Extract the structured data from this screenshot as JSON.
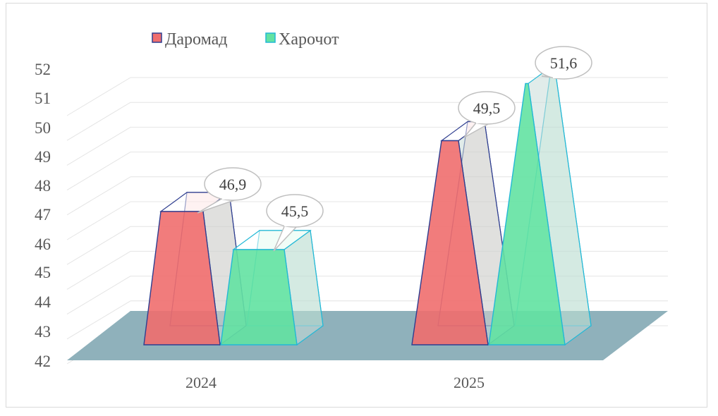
{
  "chart_data": {
    "type": "bar",
    "style": "3d-pyramid-clustered",
    "categories": [
      "2024",
      "2025"
    ],
    "series": [
      {
        "name": "Даромад",
        "values": [
          46.9,
          49.5
        ],
        "color": "#f06e6e",
        "edge": "#2e3d8f"
      },
      {
        "name": "Харочот",
        "values": [
          45.5,
          51.6
        ],
        "color": "#63e2a2",
        "edge": "#22b8d6"
      }
    ],
    "data_labels": [
      "46,9",
      "45,5",
      "49,5",
      "51,6"
    ],
    "y_ticks": [
      "42",
      "43",
      "44",
      "45",
      "46",
      "47",
      "48",
      "49",
      "50",
      "51",
      "52"
    ],
    "ylim": [
      42,
      52
    ],
    "grid": true,
    "legend_position": "top-left",
    "floor_color": "#8fb1bb",
    "title": "",
    "xlabel": "",
    "ylabel": ""
  }
}
